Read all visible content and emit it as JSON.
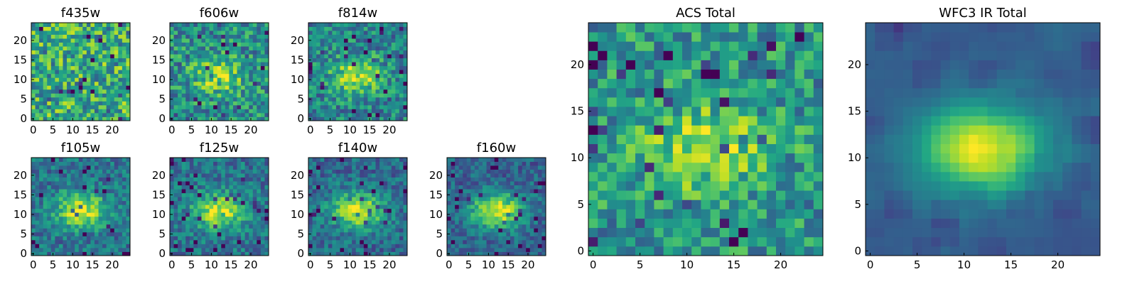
{
  "figure": {
    "background": "#ffffff",
    "colormap": "viridis"
  },
  "panels": [
    {
      "id": "f435w",
      "title": "f435w",
      "grid": [
        25,
        25
      ],
      "kind": "noise",
      "seed": 11,
      "peak": 0.0,
      "noise": 0.5,
      "base": 0.62
    },
    {
      "id": "f606w",
      "title": "f606w",
      "grid": [
        25,
        25
      ],
      "kind": "blob",
      "seed": 23,
      "peak": 0.35,
      "noise": 0.42,
      "base": 0.5
    },
    {
      "id": "f814w",
      "title": "f814w",
      "grid": [
        25,
        25
      ],
      "kind": "blob",
      "seed": 37,
      "peak": 0.45,
      "noise": 0.38,
      "base": 0.45
    },
    {
      "id": "f105w",
      "title": "f105w",
      "grid": [
        25,
        25
      ],
      "kind": "blob",
      "seed": 41,
      "peak": 0.55,
      "noise": 0.3,
      "base": 0.38
    },
    {
      "id": "f125w",
      "title": "f125w",
      "grid": [
        25,
        25
      ],
      "kind": "blob",
      "seed": 53,
      "peak": 0.55,
      "noise": 0.3,
      "base": 0.38
    },
    {
      "id": "f140w",
      "title": "f140w",
      "grid": [
        25,
        25
      ],
      "kind": "blob",
      "seed": 67,
      "peak": 0.6,
      "noise": 0.28,
      "base": 0.35
    },
    {
      "id": "f160w",
      "title": "f160w",
      "grid": [
        25,
        25
      ],
      "kind": "blob",
      "seed": 71,
      "peak": 0.65,
      "noise": 0.26,
      "base": 0.32
    },
    {
      "id": "acs_total",
      "title": "ACS Total",
      "grid": [
        25,
        25
      ],
      "kind": "blob",
      "seed": 83,
      "peak": 0.35,
      "noise": 0.4,
      "base": 0.52
    },
    {
      "id": "wfc3_ir_total",
      "title": "WFC3 IR Total",
      "grid": [
        25,
        25
      ],
      "kind": "smooth",
      "seed": 97,
      "peak": 0.75,
      "noise": 0.16,
      "base": 0.3
    }
  ],
  "chart_data": {
    "type": "heatmap",
    "x_ticks": [
      "0",
      "5",
      "10",
      "15",
      "20"
    ],
    "y_ticks_small": [
      "0",
      "5",
      "10",
      "15",
      "20"
    ],
    "y_ticks_large": [
      "0",
      "5",
      "10",
      "15",
      "20"
    ],
    "xlim": [
      0,
      25
    ],
    "ylim": [
      0,
      25
    ],
    "note": "values rendered as viridis-colored 25x25 pixel grids"
  }
}
